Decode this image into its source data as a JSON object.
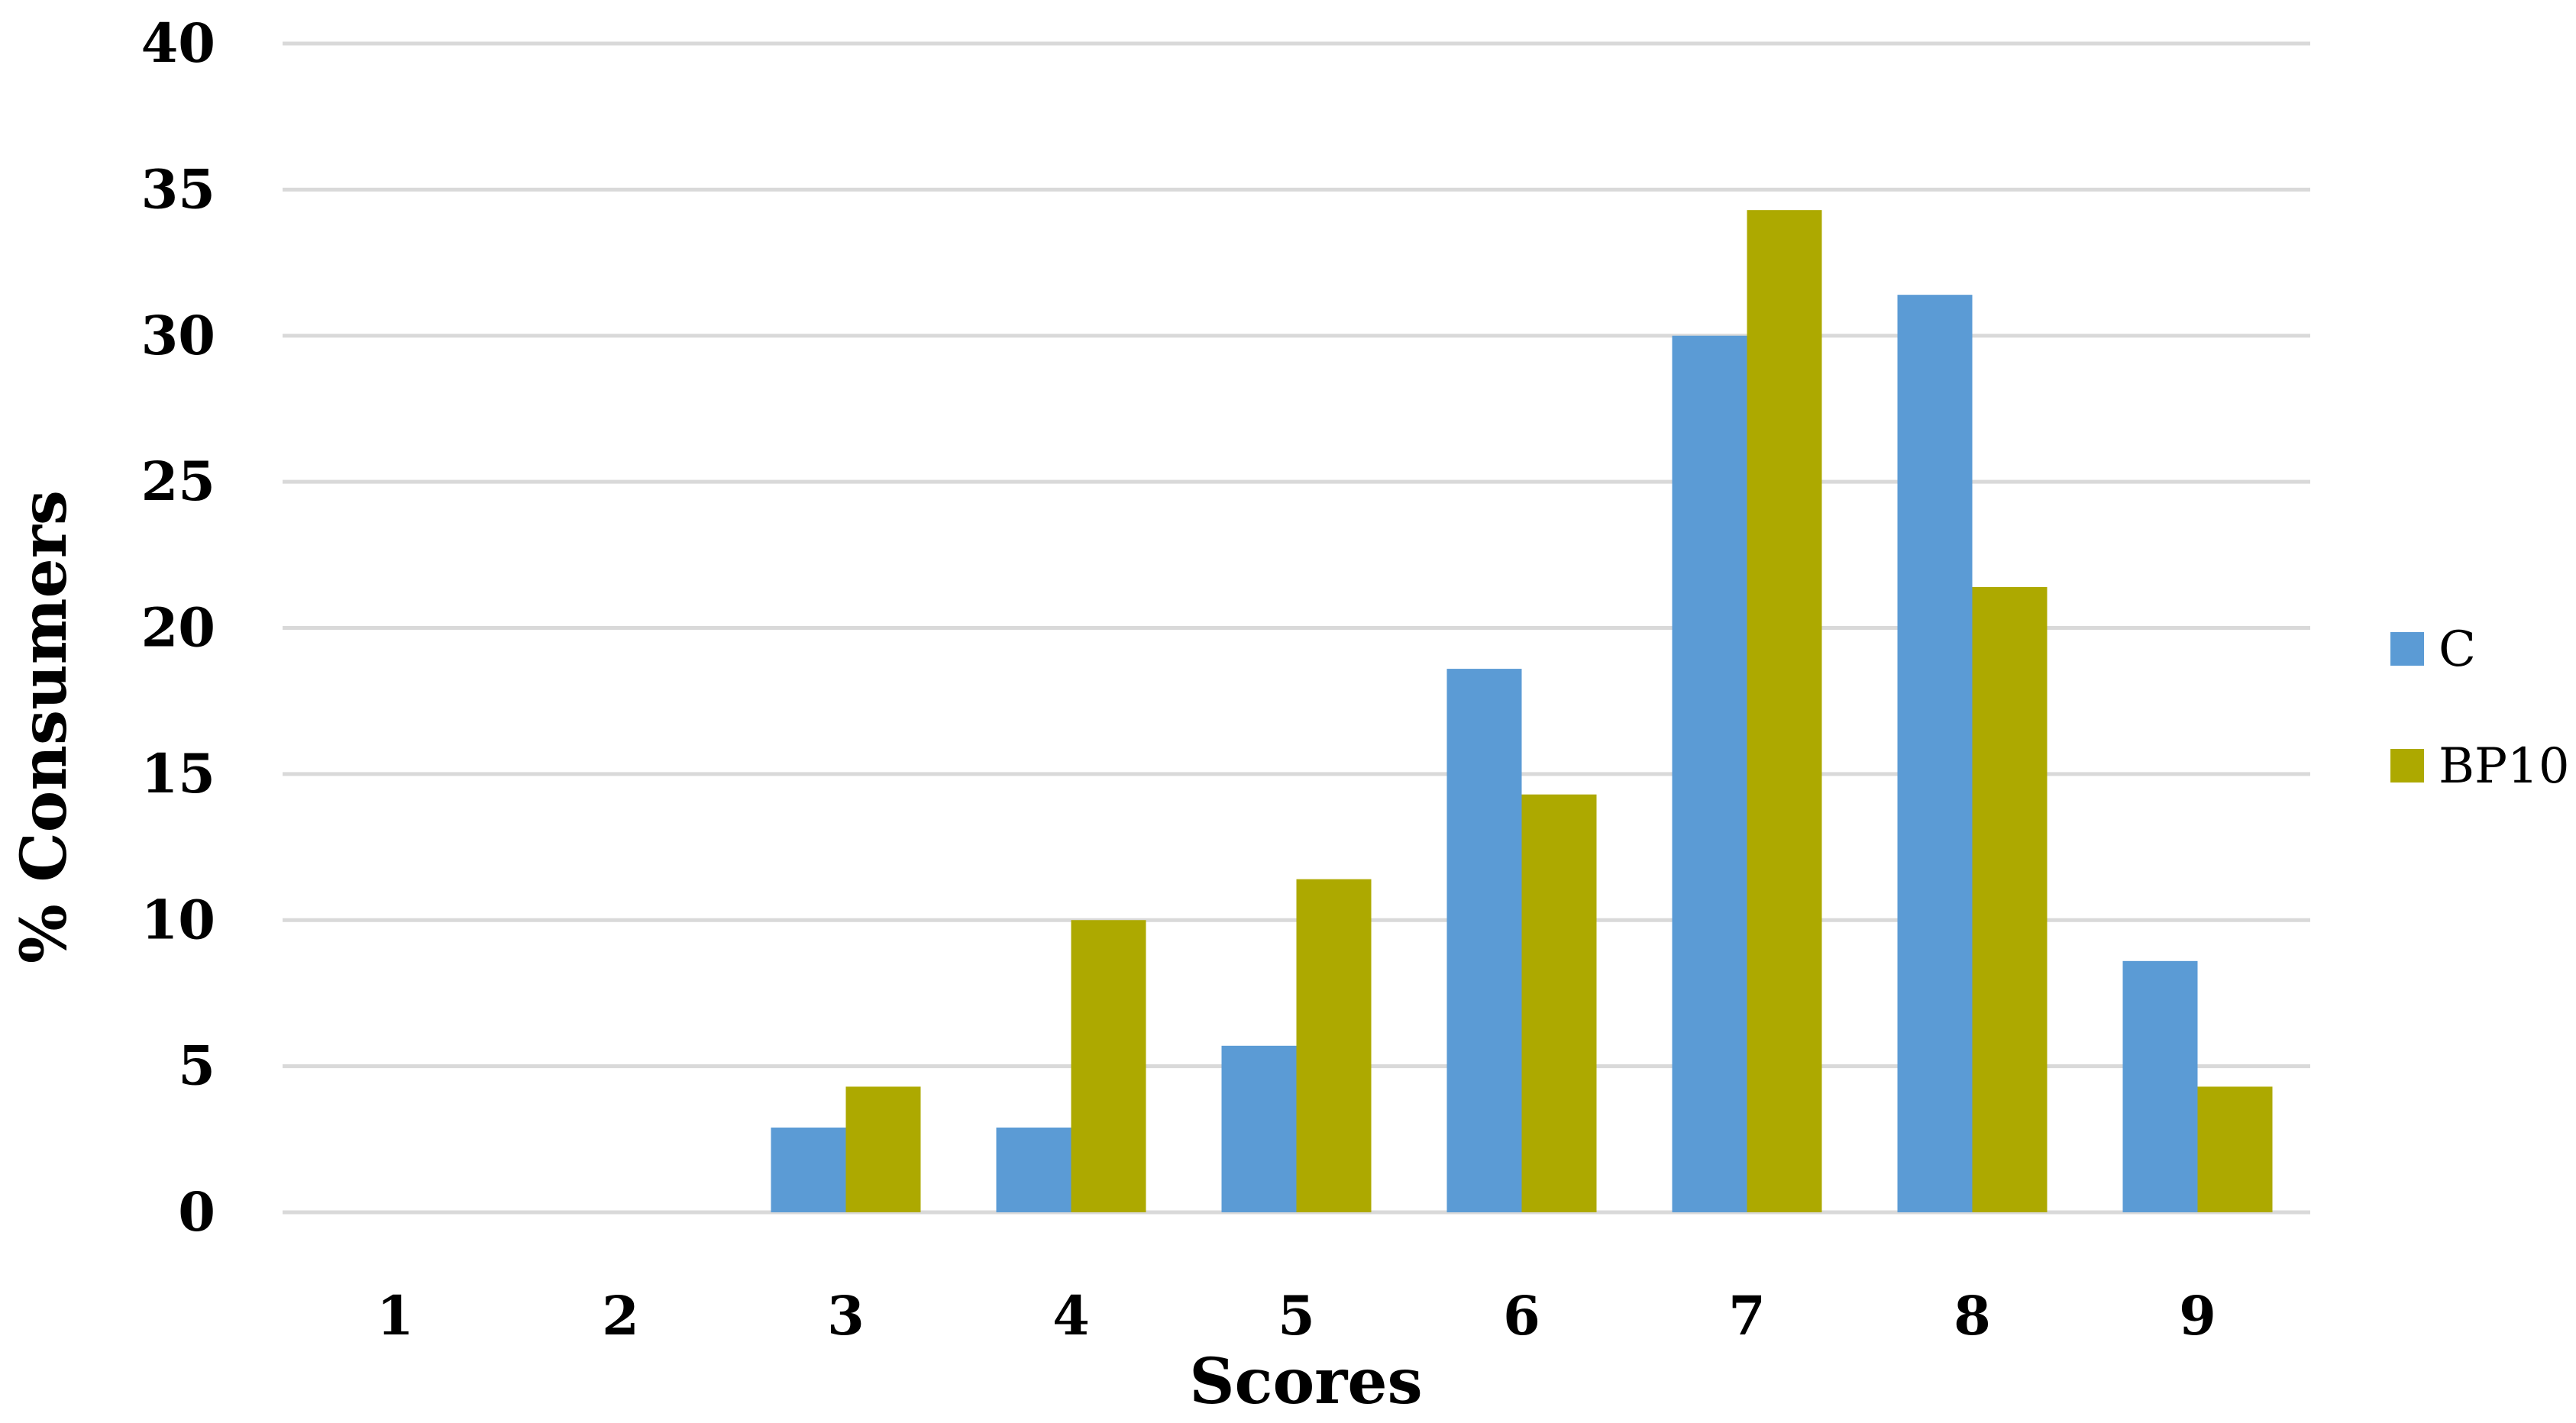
{
  "chart_data": {
    "type": "bar",
    "categories": [
      "1",
      "2",
      "3",
      "4",
      "5",
      "6",
      "7",
      "8",
      "9"
    ],
    "series": [
      {
        "name": "C",
        "color": "#5B9BD5",
        "values": [
          0,
          0,
          2.9,
          2.9,
          5.7,
          18.6,
          30.0,
          31.4,
          8.6
        ]
      },
      {
        "name": "BP10",
        "color": "#ADA900",
        "values": [
          0,
          0,
          4.3,
          10.0,
          11.4,
          14.3,
          34.3,
          21.4,
          4.3
        ]
      }
    ],
    "y_ticks": [
      "0",
      "5",
      "10",
      "15",
      "20",
      "25",
      "30",
      "35",
      "40"
    ],
    "ylim": [
      0,
      40
    ],
    "xlabel": "Scores",
    "ylabel": "% Consumers",
    "grid": true,
    "grid_color": "#D9D9D9",
    "legend_position": "right"
  }
}
